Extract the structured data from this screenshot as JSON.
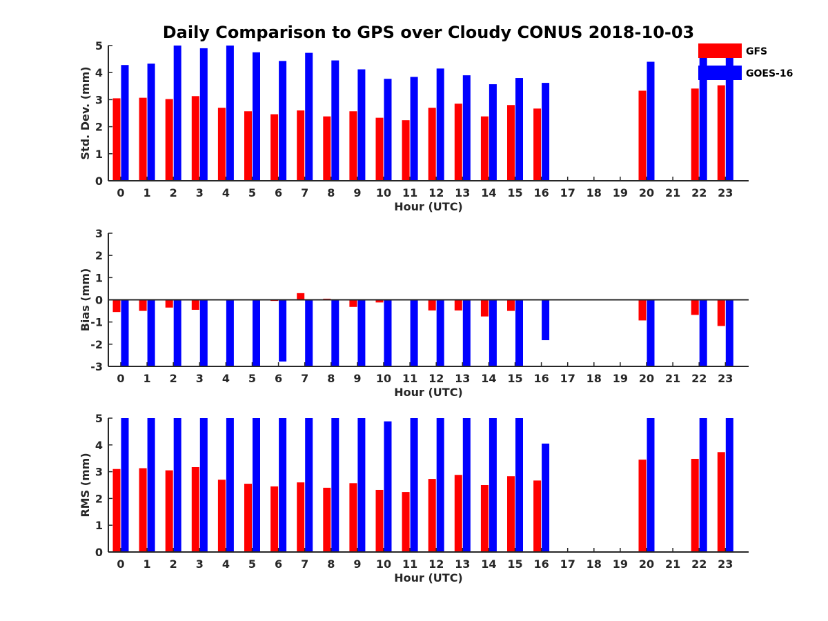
{
  "title": "Daily Comparison to GPS over Cloudy CONUS 2018-10-03",
  "colors": {
    "GFS": "#ff0000",
    "GOES-16": "#0000ff",
    "axis": "#262626"
  },
  "chart_data": [
    {
      "type": "bar",
      "ylabel": "Std. Dev. (mm)",
      "xlabel": "Hour (UTC)",
      "ylim": [
        0,
        5
      ],
      "yticks": [
        0,
        1,
        2,
        3,
        4,
        5
      ],
      "categories": [
        "0",
        "1",
        "2",
        "3",
        "4",
        "5",
        "6",
        "7",
        "8",
        "9",
        "10",
        "11",
        "12",
        "13",
        "14",
        "15",
        "16",
        "17",
        "18",
        "19",
        "20",
        "21",
        "22",
        "23"
      ],
      "legend": {
        "position": "top-right",
        "entries": [
          "GFS",
          "GOES-16"
        ]
      },
      "series": [
        {
          "name": "GFS",
          "values": [
            3.05,
            3.07,
            3.02,
            3.13,
            2.7,
            2.57,
            2.46,
            2.6,
            2.38,
            2.57,
            2.33,
            2.24,
            2.7,
            2.85,
            2.38,
            2.8,
            2.67,
            null,
            null,
            null,
            3.33,
            null,
            3.41,
            3.53
          ]
        },
        {
          "name": "GOES-16",
          "values": [
            4.28,
            4.33,
            5.0,
            4.9,
            5.0,
            4.75,
            4.43,
            4.73,
            4.45,
            4.12,
            3.77,
            3.84,
            4.15,
            3.9,
            3.57,
            3.8,
            3.62,
            null,
            null,
            null,
            4.4,
            null,
            5.0,
            5.0
          ]
        }
      ]
    },
    {
      "type": "bar",
      "ylabel": "Bias (mm)",
      "xlabel": "Hour (UTC)",
      "ylim": [
        -3,
        3
      ],
      "yticks": [
        -3,
        -2,
        -1,
        0,
        1,
        2,
        3
      ],
      "categories": [
        "0",
        "1",
        "2",
        "3",
        "4",
        "5",
        "6",
        "7",
        "8",
        "9",
        "10",
        "11",
        "12",
        "13",
        "14",
        "15",
        "16",
        "17",
        "18",
        "19",
        "20",
        "21",
        "22",
        "23"
      ],
      "series": [
        {
          "name": "GFS",
          "values": [
            -0.55,
            -0.5,
            -0.35,
            -0.45,
            0.02,
            0.0,
            -0.05,
            0.3,
            0.05,
            -0.32,
            -0.12,
            0.02,
            -0.48,
            -0.48,
            -0.75,
            -0.5,
            0.0,
            null,
            null,
            null,
            -0.93,
            null,
            -0.68,
            -1.18
          ]
        },
        {
          "name": "GOES-16",
          "values": [
            -3.0,
            -3.0,
            -3.0,
            -3.0,
            -3.0,
            -3.0,
            -2.78,
            -3.0,
            -3.0,
            -3.0,
            -3.0,
            -3.0,
            -3.0,
            -3.0,
            -3.0,
            -3.0,
            -1.82,
            null,
            null,
            null,
            -3.0,
            null,
            -3.0,
            -3.0
          ]
        }
      ]
    },
    {
      "type": "bar",
      "ylabel": "RMS (mm)",
      "xlabel": "Hour (UTC)",
      "ylim": [
        0,
        5
      ],
      "yticks": [
        0,
        1,
        2,
        3,
        4,
        5
      ],
      "categories": [
        "0",
        "1",
        "2",
        "3",
        "4",
        "5",
        "6",
        "7",
        "8",
        "9",
        "10",
        "11",
        "12",
        "13",
        "14",
        "15",
        "16",
        "17",
        "18",
        "19",
        "20",
        "21",
        "22",
        "23"
      ],
      "series": [
        {
          "name": "GFS",
          "values": [
            3.1,
            3.13,
            3.05,
            3.17,
            2.7,
            2.55,
            2.45,
            2.6,
            2.4,
            2.57,
            2.32,
            2.24,
            2.73,
            2.88,
            2.5,
            2.83,
            2.67,
            null,
            null,
            null,
            3.45,
            null,
            3.48,
            3.73
          ]
        },
        {
          "name": "GOES-16",
          "values": [
            5.0,
            5.0,
            5.0,
            5.0,
            5.0,
            5.0,
            5.0,
            5.0,
            5.0,
            5.0,
            4.88,
            5.0,
            5.0,
            5.0,
            5.0,
            5.0,
            4.05,
            null,
            null,
            null,
            5.0,
            null,
            5.0,
            5.0
          ]
        }
      ]
    }
  ]
}
